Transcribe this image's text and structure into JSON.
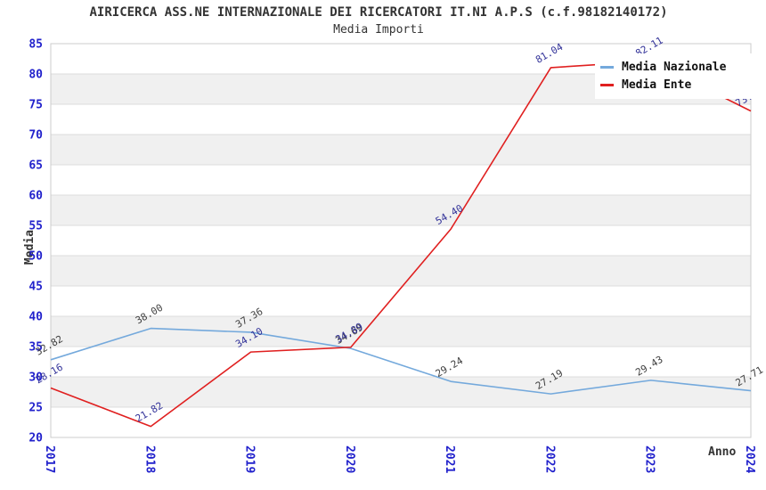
{
  "header": {
    "title": "AIRICERCA ASS.NE INTERNAZIONALE DEI RICERCATORI IT.NI A.P.S (c.f.98182140172)",
    "subtitle": "Media Importi"
  },
  "chart_data": {
    "type": "line",
    "x": [
      "2017",
      "2018",
      "2019",
      "2020",
      "2021",
      "2022",
      "2023",
      "2024"
    ],
    "series": [
      {
        "name": "Media Nazionale",
        "color": "#74a9dc",
        "label_color": "#404040",
        "values": [
          32.82,
          38.0,
          37.36,
          34.69,
          29.24,
          27.19,
          29.43,
          27.71
        ]
      },
      {
        "name": "Media Ente",
        "color": "#e02020",
        "label_color": "#333399",
        "values": [
          28.16,
          21.82,
          34.1,
          34.89,
          54.4,
          81.04,
          82.11,
          73.88
        ]
      }
    ],
    "xlabel": "Anno",
    "ylabel": "Media",
    "ylim": [
      20,
      85
    ],
    "ytick_step": 5,
    "yticks": [
      20,
      25,
      30,
      35,
      40,
      45,
      50,
      55,
      60,
      65,
      70,
      75,
      80,
      85
    ],
    "grid": true,
    "legend_position": "top-right",
    "axis_tick_color": "#2222cc",
    "band_colors": [
      "#ffffff",
      "#f0f0f0"
    ],
    "gridline_color": "#dcdcdc",
    "plot_border_color": "#cccccc"
  }
}
